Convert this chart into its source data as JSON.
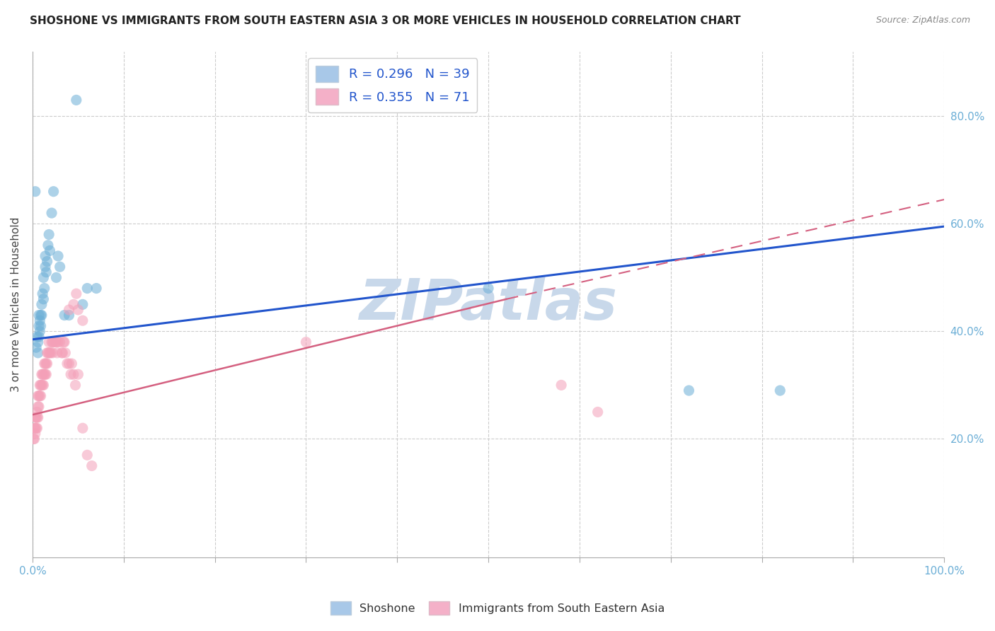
{
  "title": "SHOSHONE VS IMMIGRANTS FROM SOUTH EASTERN ASIA 3 OR MORE VEHICLES IN HOUSEHOLD CORRELATION CHART",
  "source": "Source: ZipAtlas.com",
  "ylabel": "3 or more Vehicles in Household",
  "right_yticks": [
    "20.0%",
    "40.0%",
    "60.0%",
    "80.0%"
  ],
  "right_ytick_vals": [
    0.2,
    0.4,
    0.6,
    0.8
  ],
  "shoshone_color": "#6baed6",
  "immigrant_color": "#f4a0b8",
  "shoshone_line_color": "#2255cc",
  "immigrant_line_color": "#d46080",
  "watermark": "ZIPatlas",
  "watermark_color": "#c8d8ea",
  "background_color": "#ffffff",
  "grid_color": "#cccccc",
  "xlim": [
    0.0,
    1.0
  ],
  "ylim": [
    -0.02,
    0.92
  ],
  "shoshone_x": [
    0.003,
    0.004,
    0.005,
    0.006,
    0.006,
    0.007,
    0.007,
    0.007,
    0.008,
    0.008,
    0.009,
    0.009,
    0.01,
    0.01,
    0.011,
    0.012,
    0.012,
    0.013,
    0.014,
    0.014,
    0.015,
    0.016,
    0.017,
    0.018,
    0.019,
    0.021,
    0.023,
    0.026,
    0.028,
    0.03,
    0.035,
    0.04,
    0.048,
    0.055,
    0.06,
    0.07,
    0.5,
    0.72,
    0.82
  ],
  "shoshone_y": [
    0.66,
    0.37,
    0.39,
    0.36,
    0.38,
    0.39,
    0.41,
    0.43,
    0.4,
    0.42,
    0.41,
    0.43,
    0.43,
    0.45,
    0.47,
    0.46,
    0.5,
    0.48,
    0.52,
    0.54,
    0.51,
    0.53,
    0.56,
    0.58,
    0.55,
    0.62,
    0.66,
    0.5,
    0.54,
    0.52,
    0.43,
    0.43,
    0.83,
    0.45,
    0.48,
    0.48,
    0.48,
    0.29,
    0.29
  ],
  "immigrant_x": [
    0.001,
    0.002,
    0.002,
    0.003,
    0.003,
    0.003,
    0.004,
    0.004,
    0.005,
    0.005,
    0.005,
    0.006,
    0.006,
    0.006,
    0.007,
    0.007,
    0.008,
    0.008,
    0.009,
    0.009,
    0.01,
    0.01,
    0.011,
    0.011,
    0.012,
    0.012,
    0.013,
    0.013,
    0.014,
    0.014,
    0.015,
    0.015,
    0.016,
    0.016,
    0.017,
    0.018,
    0.018,
    0.019,
    0.02,
    0.021,
    0.022,
    0.022,
    0.023,
    0.025,
    0.026,
    0.027,
    0.028,
    0.03,
    0.032,
    0.033,
    0.034,
    0.035,
    0.036,
    0.038,
    0.04,
    0.042,
    0.043,
    0.045,
    0.047,
    0.05,
    0.055,
    0.06,
    0.065,
    0.04,
    0.045,
    0.048,
    0.05,
    0.055,
    0.3,
    0.58,
    0.62
  ],
  "immigrant_y": [
    0.2,
    0.2,
    0.22,
    0.21,
    0.22,
    0.24,
    0.22,
    0.24,
    0.22,
    0.24,
    0.25,
    0.24,
    0.26,
    0.28,
    0.26,
    0.28,
    0.28,
    0.3,
    0.28,
    0.3,
    0.3,
    0.32,
    0.3,
    0.32,
    0.3,
    0.32,
    0.32,
    0.34,
    0.32,
    0.34,
    0.32,
    0.34,
    0.34,
    0.36,
    0.36,
    0.36,
    0.38,
    0.36,
    0.36,
    0.38,
    0.36,
    0.38,
    0.38,
    0.38,
    0.38,
    0.36,
    0.38,
    0.38,
    0.36,
    0.36,
    0.38,
    0.38,
    0.36,
    0.34,
    0.34,
    0.32,
    0.34,
    0.32,
    0.3,
    0.32,
    0.22,
    0.17,
    0.15,
    0.44,
    0.45,
    0.47,
    0.44,
    0.42,
    0.38,
    0.3,
    0.25
  ],
  "sh_trend_x0": 0.0,
  "sh_trend_y0": 0.385,
  "sh_trend_x1": 1.0,
  "sh_trend_y1": 0.595,
  "im_trend_x0": 0.0,
  "im_trend_y0": 0.245,
  "im_trend_x1": 0.52,
  "im_trend_y1": 0.46,
  "im_trend_dash_x0": 0.52,
  "im_trend_dash_y0": 0.46,
  "im_trend_dash_x1": 1.0,
  "im_trend_dash_y1": 0.645,
  "legend_R1": "R = 0.296",
  "legend_N1": "N = 39",
  "legend_R2": "R = 0.355",
  "legend_N2": "N = 71",
  "legend_color1": "#a8c8e8",
  "legend_color2": "#f4b0c8",
  "tick_color": "#6baed6",
  "title_fontsize": 11,
  "source_fontsize": 9
}
